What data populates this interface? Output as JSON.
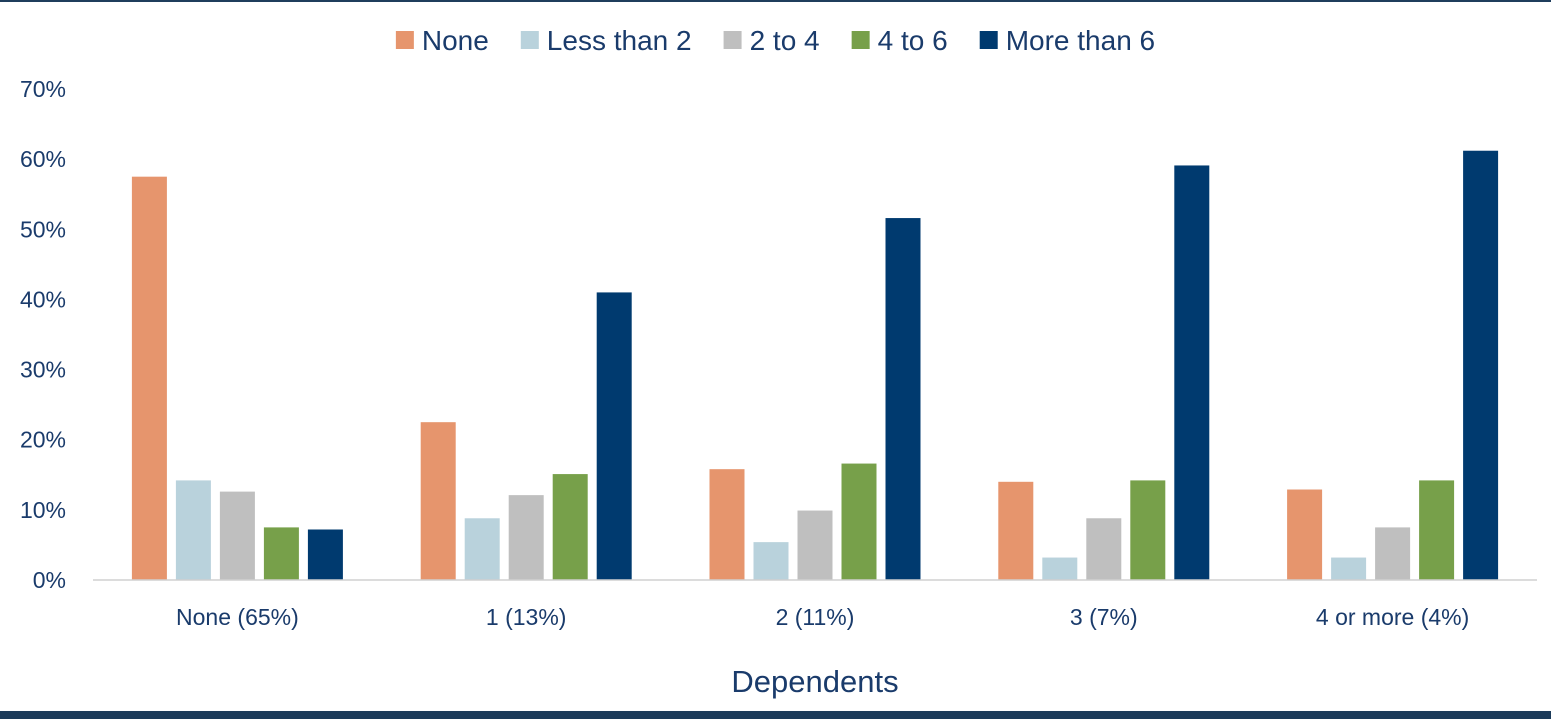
{
  "chart_data": {
    "type": "bar",
    "title": "",
    "xlabel": "Dependents",
    "ylabel": "",
    "ylim": [
      0,
      70
    ],
    "y_ticks": [
      "0%",
      "10%",
      "20%",
      "30%",
      "40%",
      "50%",
      "60%",
      "70%"
    ],
    "y_tick_values": [
      0,
      10,
      20,
      30,
      40,
      50,
      60,
      70
    ],
    "grid": false,
    "legend_position": "top",
    "categories": [
      "None (65%)",
      "1 (13%)",
      "2 (11%)",
      "3 (7%)",
      "4 or more (4%)"
    ],
    "series": [
      {
        "name": "None",
        "color": "#e6956d",
        "values": [
          57.5,
          22.5,
          15.8,
          14.0,
          12.9
        ]
      },
      {
        "name": "Less than 2",
        "color": "#b9d2dc",
        "values": [
          14.2,
          8.8,
          5.4,
          3.2,
          3.2
        ]
      },
      {
        "name": "2 to 4",
        "color": "#bfbfbf",
        "values": [
          12.6,
          12.1,
          9.9,
          8.8,
          7.5
        ]
      },
      {
        "name": "4 to 6",
        "color": "#77a04a",
        "values": [
          7.5,
          15.1,
          16.6,
          14.2,
          14.2
        ]
      },
      {
        "name": "More than 6",
        "color": "#003a6f",
        "values": [
          7.2,
          41.0,
          51.6,
          59.1,
          61.2
        ]
      }
    ]
  }
}
